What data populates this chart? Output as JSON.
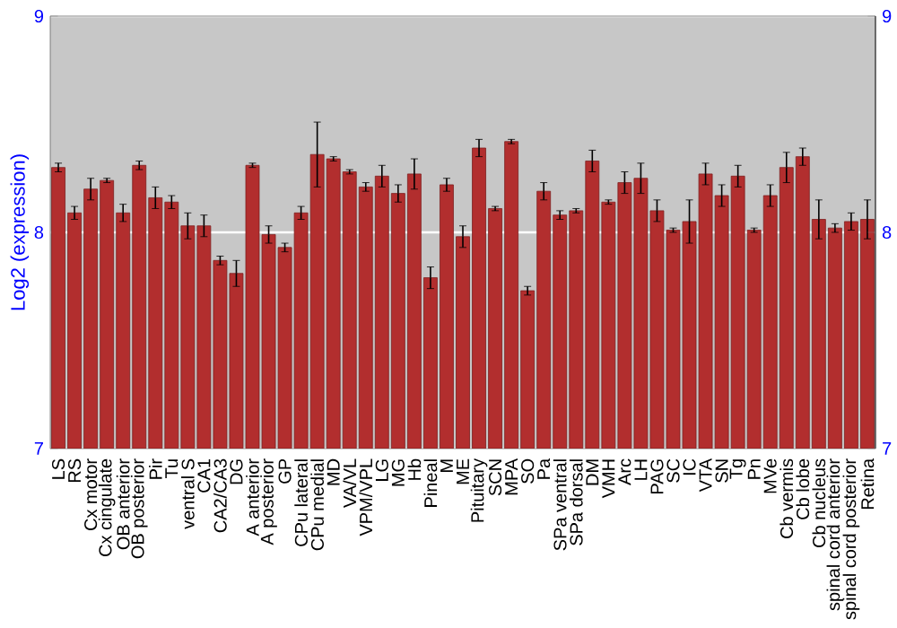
{
  "chart_data": {
    "type": "bar",
    "ylabel": "Log2 (expression)",
    "categories": [
      "LS",
      "RS",
      "Cx motor",
      "Cx cingulate",
      "OB anterior",
      "OB posterior",
      "Pir",
      "Tu",
      "ventral S",
      "CA1",
      "CA2/CA3",
      "DG",
      "A anterior",
      "A posterior",
      "GP",
      "CPu lateral",
      "CPu medial",
      "MD",
      "VA/VL",
      "VPM/VPL",
      "LG",
      "MG",
      "Hb",
      "Pineal",
      "M",
      "ME",
      "Pituitary",
      "SCN",
      "MPA",
      "SO",
      "Pa",
      "SPa ventral",
      "SPa dorsal",
      "DM",
      "VMH",
      "Arc",
      "LH",
      "PAG",
      "SC",
      "IC",
      "VTA",
      "SN",
      "Tg",
      "Pn",
      "MVe",
      "Cb vermis",
      "Cb lobe",
      "Cb nucleus",
      "spinal cord anterior",
      "spinal cord posterior",
      "Retina"
    ],
    "values": [
      8.3,
      8.09,
      8.2,
      8.24,
      8.09,
      8.31,
      8.16,
      8.14,
      8.03,
      8.03,
      7.87,
      7.81,
      8.31,
      7.99,
      7.93,
      8.09,
      8.36,
      8.34,
      8.28,
      8.21,
      8.26,
      8.18,
      8.27,
      7.79,
      8.22,
      7.98,
      8.39,
      8.11,
      8.42,
      7.73,
      8.19,
      8.08,
      8.1,
      8.33,
      8.14,
      8.23,
      8.25,
      8.1,
      8.01,
      8.05,
      8.27,
      8.17,
      8.26,
      8.01,
      8.17,
      8.3,
      8.35,
      8.06,
      8.02,
      8.05,
      8.06
    ],
    "errors": [
      0.02,
      0.03,
      0.05,
      0.01,
      0.04,
      0.02,
      0.05,
      0.03,
      0.06,
      0.05,
      0.02,
      0.06,
      0.01,
      0.04,
      0.02,
      0.03,
      0.15,
      0.01,
      0.01,
      0.02,
      0.05,
      0.04,
      0.07,
      0.05,
      0.03,
      0.05,
      0.04,
      0.01,
      0.01,
      0.02,
      0.04,
      0.02,
      0.01,
      0.05,
      0.01,
      0.05,
      0.07,
      0.05,
      0.01,
      0.1,
      0.05,
      0.05,
      0.05,
      0.01,
      0.05,
      0.07,
      0.04,
      0.09,
      0.02,
      0.04,
      0.09
    ],
    "color": "#b22e2e",
    "ylim": [
      7,
      9
    ],
    "yticks": [
      7,
      8,
      9
    ],
    "y2lim": [
      7,
      9
    ],
    "y2ticks": [
      7,
      8,
      9
    ],
    "grid": "y"
  }
}
